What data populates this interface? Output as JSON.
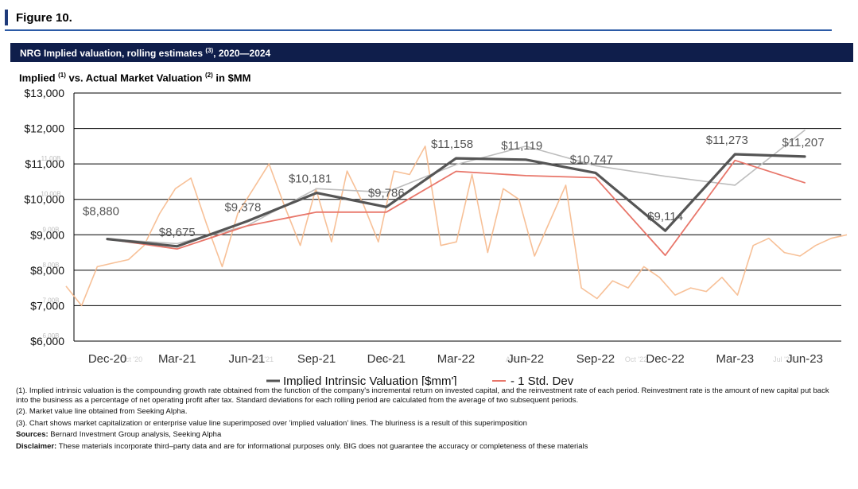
{
  "figure": {
    "title": "Figure 10."
  },
  "banner": {
    "title": "NRG Implied valuation, rolling estimates",
    "sup": "(3)",
    "suffix": ", 2020—2024"
  },
  "subtitle": {
    "part1": "Implied",
    "sup1": "(1)",
    "part2": " vs. Actual Market Valuation",
    "sup2": "(2)",
    "part3": " in $MM"
  },
  "chart_data": {
    "type": "line",
    "categories": [
      "Dec-20",
      "Mar-21",
      "Jun-21",
      "Sep-21",
      "Dec-21",
      "Mar-22",
      "Jun-22",
      "Sep-22",
      "Dec-22",
      "Mar-23",
      "Jun-23"
    ],
    "y_ticks": [
      "$6,000",
      "$7,000",
      "$8,000",
      "$9,000",
      "$10,000",
      "$11,000",
      "$12,000",
      "$13,000"
    ],
    "ylim": [
      6000,
      13000
    ],
    "grid": true,
    "legend_position": "bottom",
    "series": [
      {
        "name": "Implied Intrinsic Valuation [$mm']",
        "color": "#555555",
        "values": [
          8880,
          8675,
          9378,
          10181,
          9786,
          11158,
          11119,
          10747,
          9114,
          11273,
          11207
        ],
        "labels": [
          "$8,880",
          "$8,675",
          "$9,378",
          "$10,181",
          "$9,786",
          "$11,158",
          "$11,119",
          "$10,747",
          "$9,114",
          "$11,273",
          "$11,207"
        ]
      },
      {
        "name": "- 1 Std. Dev",
        "color": "#e8766a",
        "values": [
          8880,
          8600,
          9250,
          9640,
          9640,
          10790,
          10670,
          10610,
          8420,
          11100,
          10470
        ]
      },
      {
        "color": "#bdbdbd",
        "values": [
          8880,
          8750,
          9250,
          10300,
          10200,
          10980,
          11500,
          10950,
          10650,
          10400,
          11950
        ]
      }
    ],
    "market_value_series": {
      "color": "#f6b98c",
      "values": [
        7550,
        7000,
        8100,
        8200,
        8300,
        8700,
        9600,
        10300,
        10600,
        9300,
        8100,
        9600,
        10300,
        11000,
        9800,
        8700,
        10300,
        8800,
        10800,
        9900,
        8800,
        10800,
        10700,
        11500,
        8700,
        8800,
        10700,
        8500,
        10300,
        10000,
        8400,
        9400,
        10400,
        7500,
        7200,
        7700,
        7500,
        8100,
        7800,
        7300,
        7500,
        7400,
        7800,
        7300,
        8700,
        8900,
        8500,
        8400,
        8700,
        8900,
        9000
      ]
    },
    "ghost_tick_labels": [
      "11.00B",
      "10.00B",
      "9.00B",
      "8.00B",
      "7.00B",
      "6.00B"
    ],
    "ghost_date_labels": [
      "Oct '20",
      "Oct '21",
      "Jan '22",
      "Apr '22",
      "Oct '22",
      "Jul '23"
    ]
  },
  "notes": [
    "(1). Implied intrinsic valuation is the compounding growth rate obtained from the function of the company's incremental return on invested capital, and the reinvestment rate of each period. Reinvestment rate is the amount of new capital put back into the business as a percentage of net operating profit after tax. Standard deviations for each rolling period are calculated from the average of two subsequent periods.",
    "(2). Market value line obtained from Seeking Alpha.",
    "(3). Chart shows market capitalization or enterprise value line superimposed over 'implied valuation' lines. The bluriness is a result of this superimposition"
  ],
  "sources": {
    "label": "Sources:",
    "text": " Bernard Investment Group analysis, Seeking Alpha"
  },
  "disclaimer": {
    "label": "Disclaimer:",
    "text": " These materials incorporate third–party data and are for informational purposes only. BIG does not guarantee the accuracy or completeness of these materials"
  }
}
